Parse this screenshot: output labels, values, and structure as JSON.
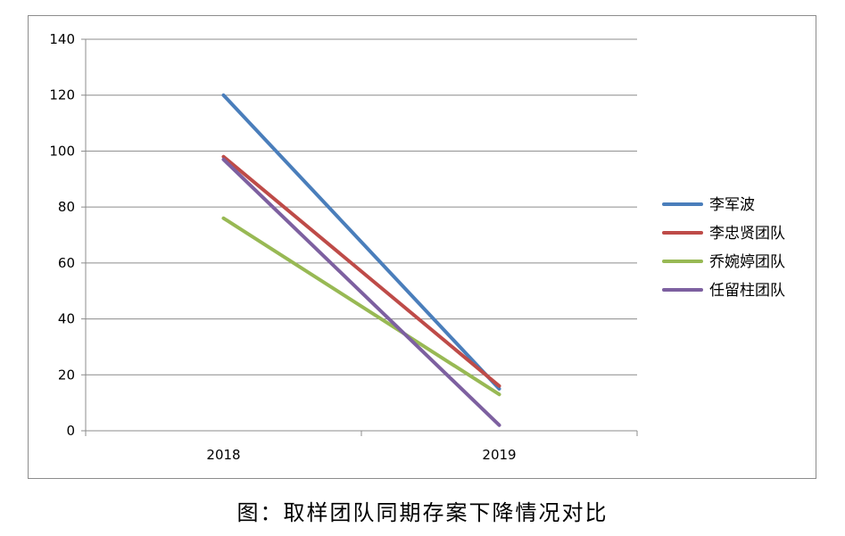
{
  "chart_data": {
    "type": "line",
    "categories": [
      "2018",
      "2019"
    ],
    "series": [
      {
        "name": "李军波",
        "values": [
          120,
          15
        ],
        "color": "#4A7EBB"
      },
      {
        "name": "李忠贤团队",
        "values": [
          98,
          16
        ],
        "color": "#BE4B48"
      },
      {
        "name": "乔婉婷团队",
        "values": [
          76,
          13
        ],
        "color": "#98B954"
      },
      {
        "name": "任留柱团队",
        "values": [
          97,
          2
        ],
        "color": "#7D60A0"
      }
    ],
    "y_ticks": [
      "0",
      "20",
      "40",
      "60",
      "80",
      "100",
      "120",
      "140"
    ],
    "ylim": [
      0,
      140
    ],
    "grid": true,
    "legend_position": "right"
  },
  "caption": "图：取样团队同期存案下降情况对比"
}
